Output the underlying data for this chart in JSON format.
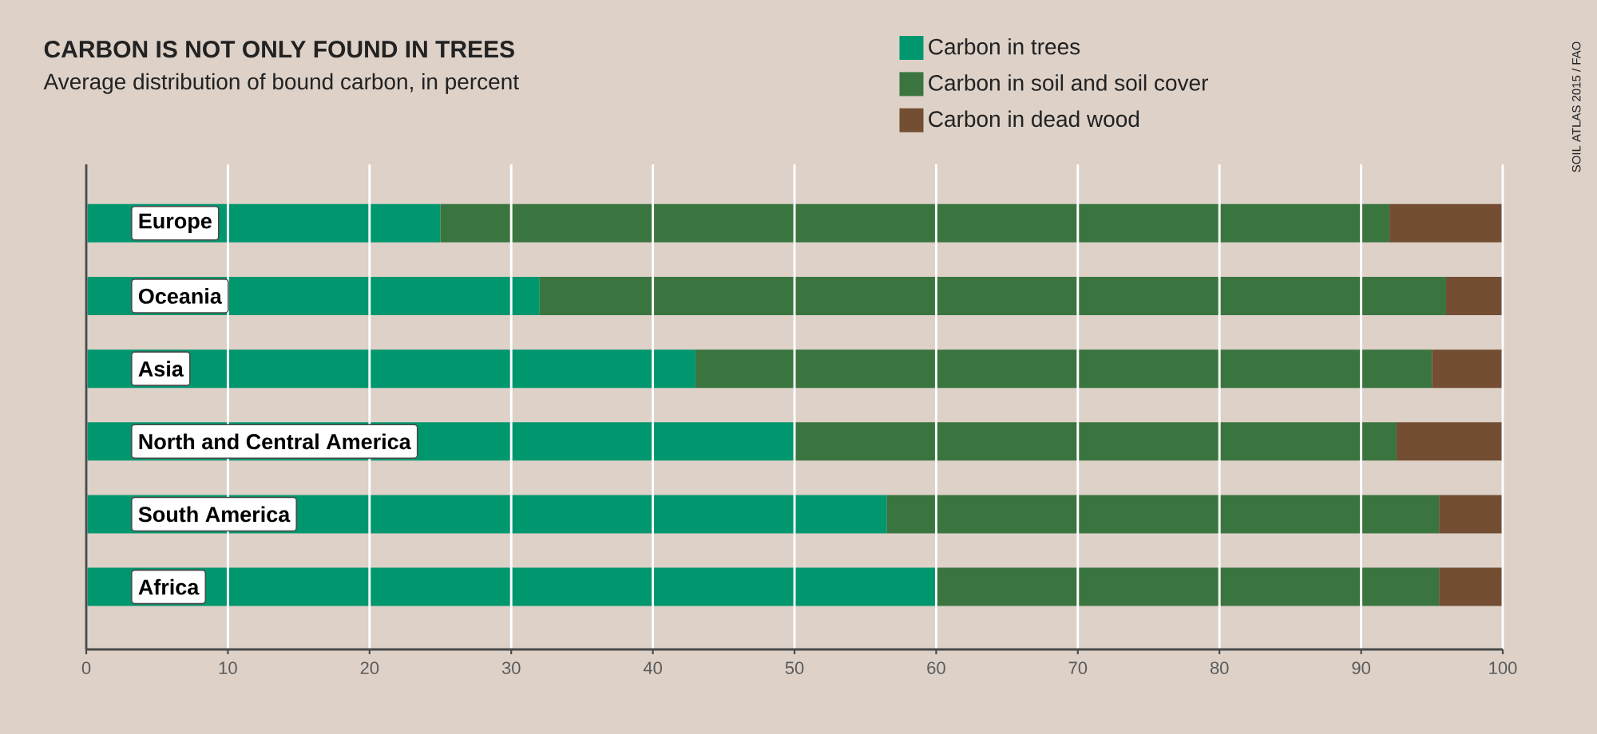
{
  "chart_data": {
    "type": "bar",
    "orientation": "horizontal",
    "stacked": true,
    "title": "CARBON IS NOT ONLY FOUND IN TREES",
    "subtitle": "Average distribution of bound carbon, in percent",
    "categories": [
      "Europe",
      "Oceania",
      "Asia",
      "North and Central America",
      "South America",
      "Africa"
    ],
    "series": [
      {
        "name": "Carbon in trees",
        "color": "#00966e",
        "values": [
          25,
          32,
          43,
          50,
          56.5,
          60
        ]
      },
      {
        "name": "Carbon in soil and soil cover",
        "color": "#3a7540",
        "values": [
          67,
          64,
          52,
          42.5,
          39,
          35.5
        ]
      },
      {
        "name": "Carbon in dead wood",
        "color": "#744e32",
        "values": [
          8,
          4,
          5,
          7.5,
          4.5,
          4.5
        ]
      }
    ],
    "xlim": [
      0,
      100
    ],
    "xticks": [
      0,
      10,
      20,
      30,
      40,
      50,
      60,
      70,
      80,
      90,
      100
    ],
    "grid": "x",
    "legend": "top",
    "annotations": [
      "SOIL ATLAS 2015 / FAO"
    ]
  }
}
